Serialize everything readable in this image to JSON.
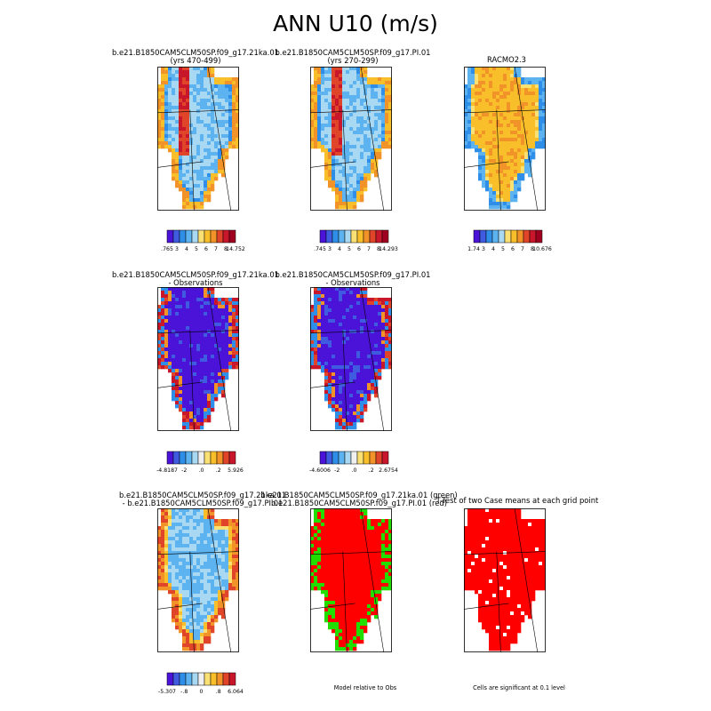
{
  "title": "ANN U10 (m/s)",
  "chart_data": [
    {
      "type": "heatmap",
      "title_lines": [
        "b.e21.B1850CAM5CLM50SP.f09_g17.21ka.01",
        "(yrs 470-499)"
      ],
      "colorbar_labels": [
        ".765",
        "3",
        "4",
        "5",
        "6",
        "7",
        "8",
        "14.752"
      ],
      "field": "model wind speed, fast along ice-sheet margins, slow in interior"
    },
    {
      "type": "heatmap",
      "title_lines": [
        "b.e21.B1850CAM5CLM50SP.f09_g17.PI.01",
        "(yrs 270-299)"
      ],
      "colorbar_labels": [
        ".745",
        "3",
        "4",
        "5",
        "6",
        "7",
        "8",
        "14.293"
      ],
      "field": "model wind speed"
    },
    {
      "type": "heatmap",
      "title_lines": [
        "RACMO2.3"
      ],
      "colorbar_labels": [
        "1.74",
        "3",
        "4",
        "5",
        "6",
        "7",
        "8",
        "10.676"
      ],
      "field": "observed wind speed, high over most of ice sheet"
    },
    {
      "type": "heatmap",
      "title_lines": [
        "b.e21.B1850CAM5CLM50SP.f09_g17.21ka.01",
        "- Observations"
      ],
      "colorbar_labels": [
        "-4.8187",
        "-2",
        ".0",
        ".2",
        "5.926"
      ],
      "field": "difference, mostly negative interior, positive coast"
    },
    {
      "type": "heatmap",
      "title_lines": [
        "b.e21.B1850CAM5CLM50SP.f09_g17.PI.01",
        "- Observations"
      ],
      "colorbar_labels": [
        "-4.6006",
        "-2",
        ".0",
        ".2",
        "2.6754"
      ],
      "field": "difference"
    },
    {
      "type": "heatmap",
      "title_lines": [
        "b.e21.B1850CAM5CLM50SP.f09_g17.21ka.01",
        "- b.e21.B1850CAM5CLM50SP.f09_g17.PI.01"
      ],
      "colorbar_labels": [
        "-5.307",
        "-.8",
        "0",
        ".8",
        "6.064"
      ],
      "field": "case difference"
    },
    {
      "type": "heatmap",
      "title_lines": [
        "b.e21.B1850CAM5CLM50SP.f09_g17.21ka.01 (green)",
        "b.e21.B1850CAM5CLM50SP.f09_g17.PI.01 (red)"
      ],
      "note": "Model relative to Obs",
      "field": "red dominant with green patches"
    },
    {
      "type": "heatmap",
      "title_lines": [
        "T-Test of two Case means at each grid point"
      ],
      "note": "Cells are significant at 0.1 level",
      "field": "almost all red"
    }
  ],
  "palettes": {
    "speed": [
      "#4b12d8",
      "#3f5be0",
      "#2f8fe8",
      "#5cb3f0",
      "#a9d8f2",
      "#fbe073",
      "#f9bf2a",
      "#f29329",
      "#e0452a",
      "#c8172b",
      "#a00020"
    ],
    "diff": [
      "#4b12d8",
      "#3f5be0",
      "#2f8fe8",
      "#5cb3f0",
      "#a9d8f2",
      "#f0f0f0",
      "#fbe073",
      "#f9bf2a",
      "#f29329",
      "#e0452a",
      "#c8172b"
    ],
    "sig_red": "#ff0000",
    "sig_green": "#22dd00"
  }
}
